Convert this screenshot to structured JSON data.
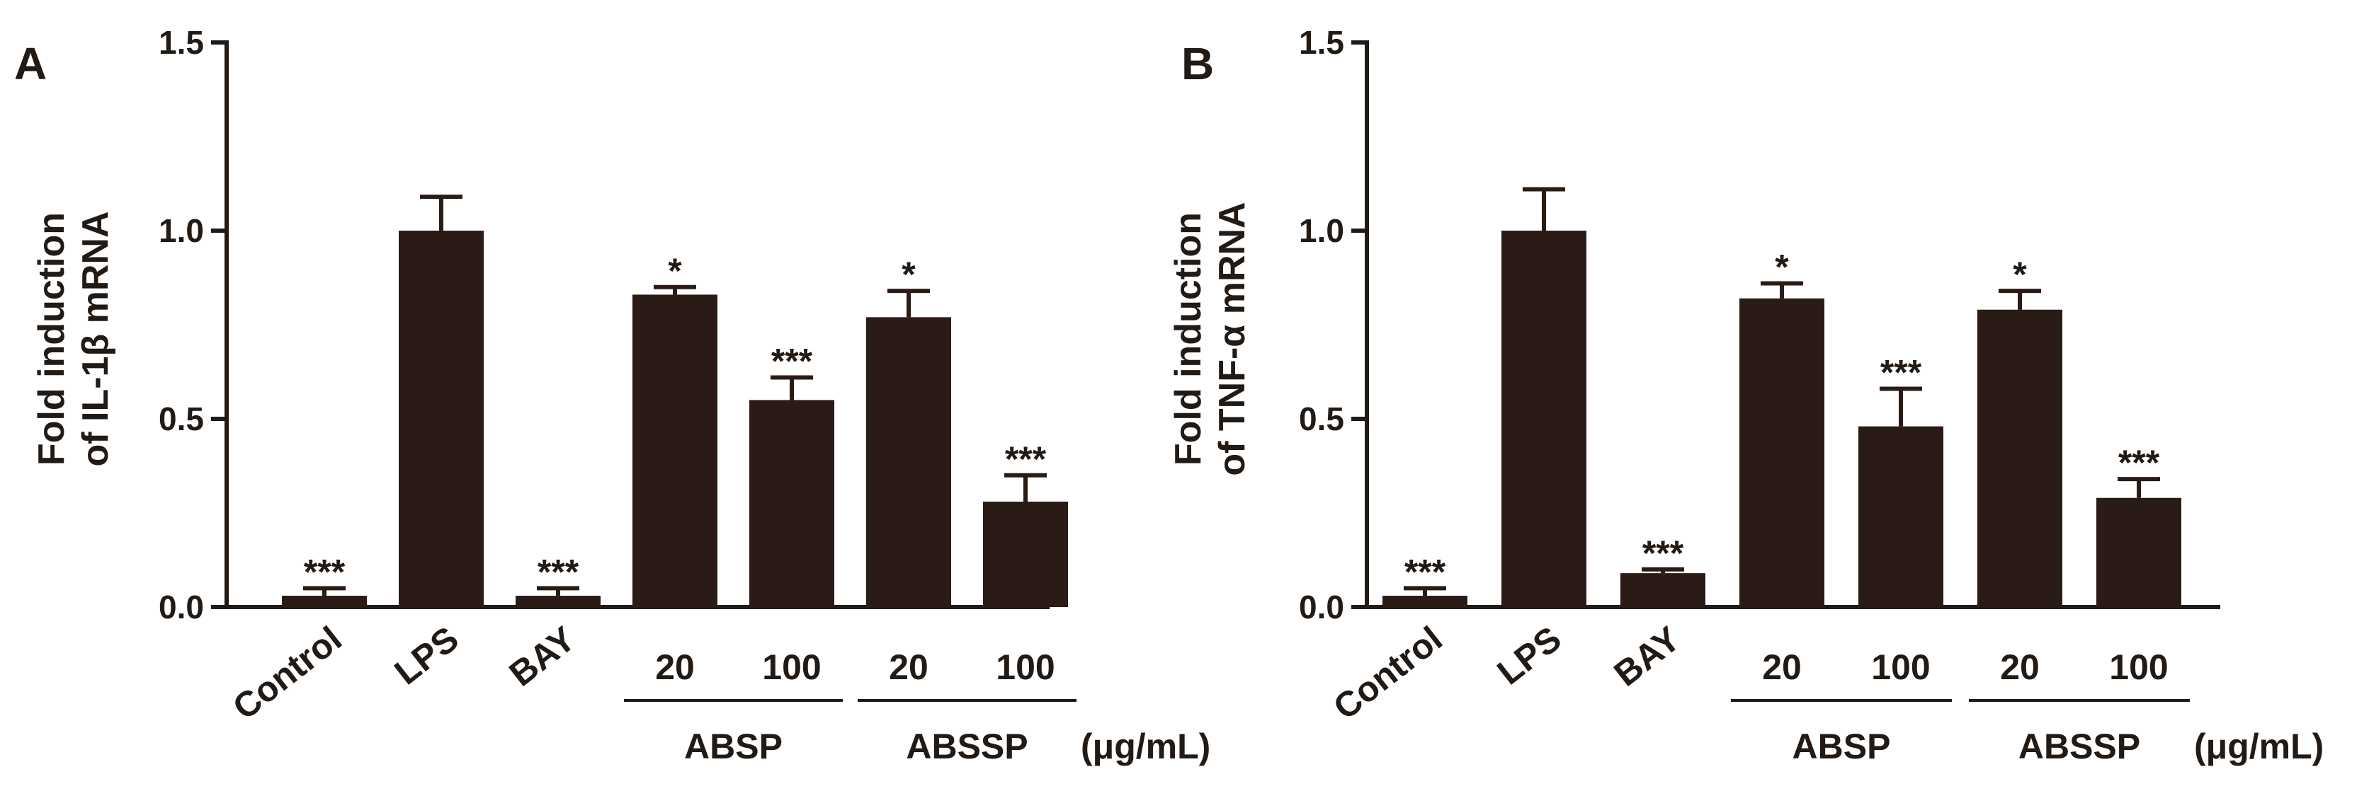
{
  "chart_data": [
    {
      "type": "bar",
      "panel": "A",
      "ylabel_line1": "Fold induction",
      "ylabel_line2": "of IL-1β  mRNA",
      "ylim": [
        0,
        1.5
      ],
      "yticks": [
        "0.0",
        "0.5",
        "1.0",
        "1.5"
      ],
      "ytick_values": [
        0,
        0.5,
        1.0,
        1.5
      ],
      "categories": [
        "Control",
        "LPS",
        "BAY",
        "20",
        "100",
        "20",
        "100"
      ],
      "values": [
        0.03,
        1.0,
        0.03,
        0.83,
        0.55,
        0.77,
        0.28
      ],
      "errors": [
        0.02,
        0.09,
        0.02,
        0.02,
        0.06,
        0.07,
        0.07
      ],
      "significance": [
        "***",
        "",
        "***",
        "*",
        "***",
        "*",
        "***"
      ],
      "groups": [
        {
          "label": "ABSP",
          "members": [
            3,
            4
          ]
        },
        {
          "label": "ABSSP",
          "members": [
            5,
            6
          ]
        }
      ],
      "unit": "(μg/mL)"
    },
    {
      "type": "bar",
      "panel": "B",
      "ylabel_line1": "Fold induction",
      "ylabel_line2": "of TNF-α  mRNA",
      "ylim": [
        0,
        1.5
      ],
      "yticks": [
        "0.0",
        "0.5",
        "1.0",
        "1.5"
      ],
      "ytick_values": [
        0,
        0.5,
        1.0,
        1.5
      ],
      "categories": [
        "Control",
        "LPS",
        "BAY",
        "20",
        "100",
        "20",
        "100"
      ],
      "values": [
        0.03,
        1.0,
        0.09,
        0.82,
        0.48,
        0.79,
        0.29
      ],
      "errors": [
        0.02,
        0.11,
        0.01,
        0.04,
        0.1,
        0.05,
        0.05
      ],
      "significance": [
        "***",
        "",
        "***",
        "*",
        "***",
        "*",
        "***"
      ],
      "groups": [
        {
          "label": "ABSP",
          "members": [
            3,
            4
          ]
        },
        {
          "label": "ABSSP",
          "members": [
            5,
            6
          ]
        }
      ],
      "unit": "(μg/mL)"
    }
  ]
}
